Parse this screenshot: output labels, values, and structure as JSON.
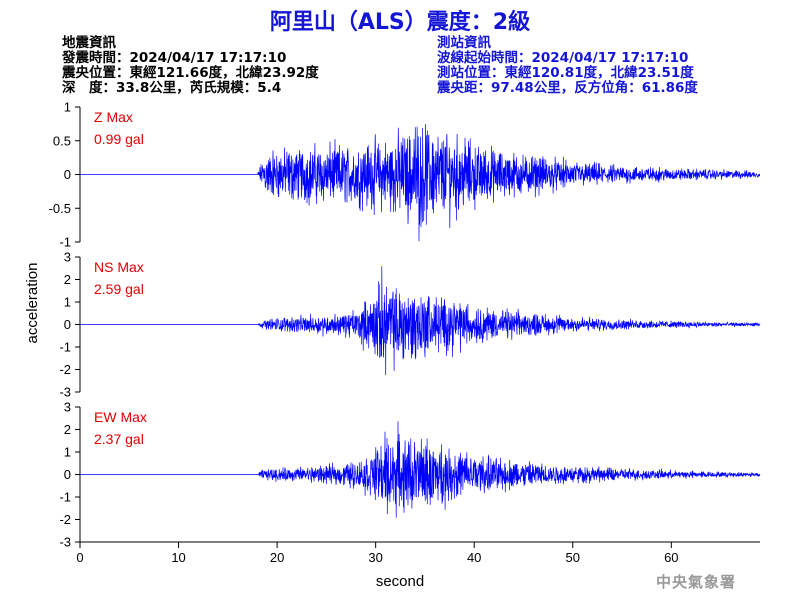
{
  "header": {
    "title": "阿里山（ALS）震度：2級"
  },
  "earthquake_info": {
    "heading": "地震資訊",
    "origin_time": "發震時間：2024/04/17 17:17:10",
    "epicenter": "震央位置：東經121.66度，北緯23.92度",
    "depth_magnitude": "深　度：33.8公里，芮氏規模：5.4"
  },
  "station_info": {
    "heading": "測站資訊",
    "wave_start": "波線起始時間：2024/04/17 17:17:10",
    "station_location": "測站位置：東經120.81度，北緯23.51度",
    "distance_azimuth": "震央距：97.48公里，反方位角：61.86度"
  },
  "watermark": "中央氣象署",
  "colors": {
    "trace": "#0000ff",
    "title": "#1515d6",
    "max_label": "#e00000"
  },
  "chart_data": {
    "type": "line",
    "xlabel": "second",
    "ylabel": "acceleration",
    "xlim": [
      0,
      69
    ],
    "x_ticks": [
      0,
      10,
      20,
      30,
      40,
      50,
      60
    ],
    "panels": [
      {
        "name": "Z",
        "max_label": "Z Max",
        "max_value": "0.99 gal",
        "ylim": [
          -1,
          1
        ],
        "y_ticks": [
          1,
          0.5,
          0,
          -0.5,
          -1
        ],
        "y_tick_labels": [
          "1",
          "0.5",
          "0",
          "-0.5",
          "-1"
        ],
        "peak": 0.99,
        "envelope": [
          [
            0,
            0.0
          ],
          [
            18.0,
            0.0
          ],
          [
            18.2,
            0.15
          ],
          [
            19,
            0.45
          ],
          [
            21,
            0.5
          ],
          [
            23,
            0.55
          ],
          [
            25,
            0.55
          ],
          [
            28,
            0.6
          ],
          [
            31,
            0.7
          ],
          [
            33,
            0.85
          ],
          [
            34,
            0.99
          ],
          [
            36,
            0.9
          ],
          [
            38,
            0.8
          ],
          [
            40,
            0.6
          ],
          [
            42,
            0.5
          ],
          [
            45,
            0.4
          ],
          [
            50,
            0.25
          ],
          [
            55,
            0.17
          ],
          [
            60,
            0.12
          ],
          [
            65,
            0.09
          ],
          [
            69,
            0.07
          ]
        ]
      },
      {
        "name": "NS",
        "max_label": "NS Max",
        "max_value": "2.59 gal",
        "ylim": [
          -3,
          3
        ],
        "y_ticks": [
          3,
          2,
          1,
          0,
          -1,
          -2,
          -3
        ],
        "y_tick_labels": [
          "3",
          "2",
          "1",
          "0",
          "-1",
          "-2",
          "-3"
        ],
        "peak": 2.59,
        "envelope": [
          [
            0,
            0.0
          ],
          [
            18.0,
            0.0
          ],
          [
            18.5,
            0.2
          ],
          [
            20,
            0.4
          ],
          [
            23,
            0.5
          ],
          [
            26,
            0.6
          ],
          [
            28,
            0.8
          ],
          [
            29.5,
            1.6
          ],
          [
            30.5,
            2.59
          ],
          [
            32,
            2.3
          ],
          [
            34,
            2.2
          ],
          [
            36,
            1.7
          ],
          [
            38,
            1.5
          ],
          [
            40,
            1.1
          ],
          [
            42,
            0.9
          ],
          [
            45,
            0.7
          ],
          [
            50,
            0.45
          ],
          [
            55,
            0.3
          ],
          [
            60,
            0.2
          ],
          [
            65,
            0.13
          ],
          [
            69,
            0.1
          ]
        ]
      },
      {
        "name": "EW",
        "max_label": "EW Max",
        "max_value": "2.37 gal",
        "ylim": [
          -3,
          3
        ],
        "y_ticks": [
          3,
          2,
          1,
          0,
          -1,
          -2,
          -3
        ],
        "y_tick_labels": [
          "3",
          "2",
          "1",
          "0",
          "-1",
          "-2",
          "-3"
        ],
        "peak": 2.37,
        "envelope": [
          [
            0,
            0.0
          ],
          [
            18.0,
            0.0
          ],
          [
            18.5,
            0.3
          ],
          [
            20,
            0.35
          ],
          [
            23,
            0.45
          ],
          [
            26,
            0.55
          ],
          [
            28,
            0.8
          ],
          [
            30,
            1.4
          ],
          [
            31,
            2.37
          ],
          [
            33,
            2.1
          ],
          [
            34,
            2.2
          ],
          [
            36,
            1.8
          ],
          [
            38,
            1.5
          ],
          [
            40,
            1.2
          ],
          [
            42,
            1.0
          ],
          [
            45,
            0.8
          ],
          [
            50,
            0.5
          ],
          [
            55,
            0.35
          ],
          [
            60,
            0.25
          ],
          [
            65,
            0.15
          ],
          [
            69,
            0.12
          ]
        ]
      }
    ]
  }
}
